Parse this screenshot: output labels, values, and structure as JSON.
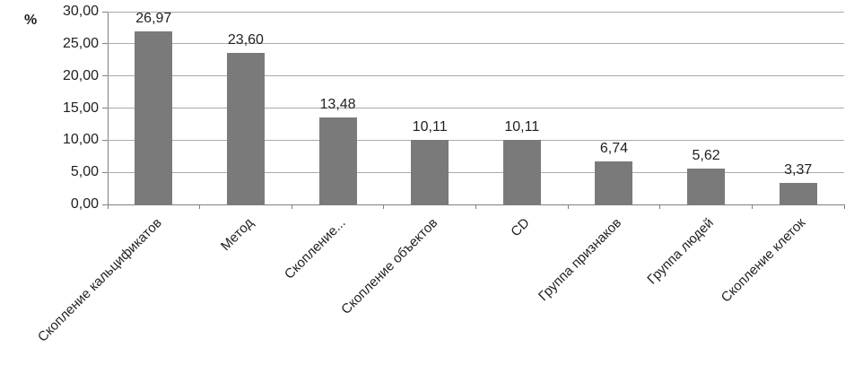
{
  "chart_data": {
    "type": "bar",
    "title": "",
    "xlabel": "",
    "ylabel": "%",
    "categories": [
      "Скопление кальцификатов",
      "Метод",
      "Скопление...",
      "Скопление объектов",
      "CD",
      "Группа признаков",
      "Группа людей",
      "Скопление клеток"
    ],
    "values": [
      26.97,
      23.6,
      13.48,
      10.11,
      10.11,
      6.74,
      5.62,
      3.37
    ],
    "value_labels": [
      "26,97",
      "23,60",
      "13,48",
      "10,11",
      "10,11",
      "6,74",
      "5,62",
      "3,37"
    ],
    "y_ticks": [
      "30,00",
      "25,00",
      "20,00",
      "15,00",
      "10,00",
      "5,00",
      "0,00"
    ],
    "ylim": [
      0,
      30
    ],
    "grid": true,
    "legend": false,
    "bar_color": "#7a7a7a",
    "gridline_color": "#ababab",
    "axis_color": "#808080",
    "text_color": "#1f1f1f"
  }
}
